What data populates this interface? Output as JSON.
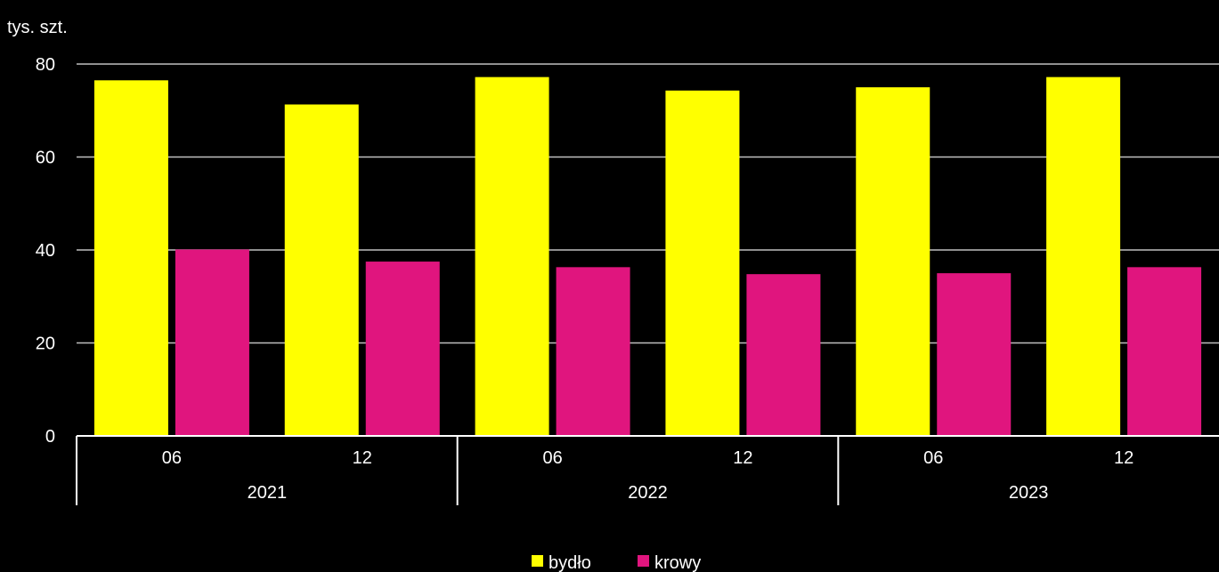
{
  "chart_data": {
    "type": "bar",
    "ylabel": "tys. szt.",
    "ylim": [
      0,
      80
    ],
    "yticks": [
      0,
      20,
      40,
      60,
      80
    ],
    "grid": true,
    "legend_position": "bottom-center",
    "background": "#000000",
    "groups": [
      {
        "label": "2021",
        "categories": [
          "06",
          "12"
        ]
      },
      {
        "label": "2022",
        "categories": [
          "06",
          "12"
        ]
      },
      {
        "label": "2023",
        "categories": [
          "06",
          "12"
        ]
      }
    ],
    "series": [
      {
        "name": "bydło",
        "color": "#FFFF00",
        "values": [
          76.5,
          71.3,
          77.2,
          74.3,
          75.0,
          77.2
        ]
      },
      {
        "name": "krowy",
        "color": "#E0157E",
        "values": [
          40.1,
          37.5,
          36.3,
          34.8,
          35.0,
          36.3
        ]
      }
    ]
  }
}
